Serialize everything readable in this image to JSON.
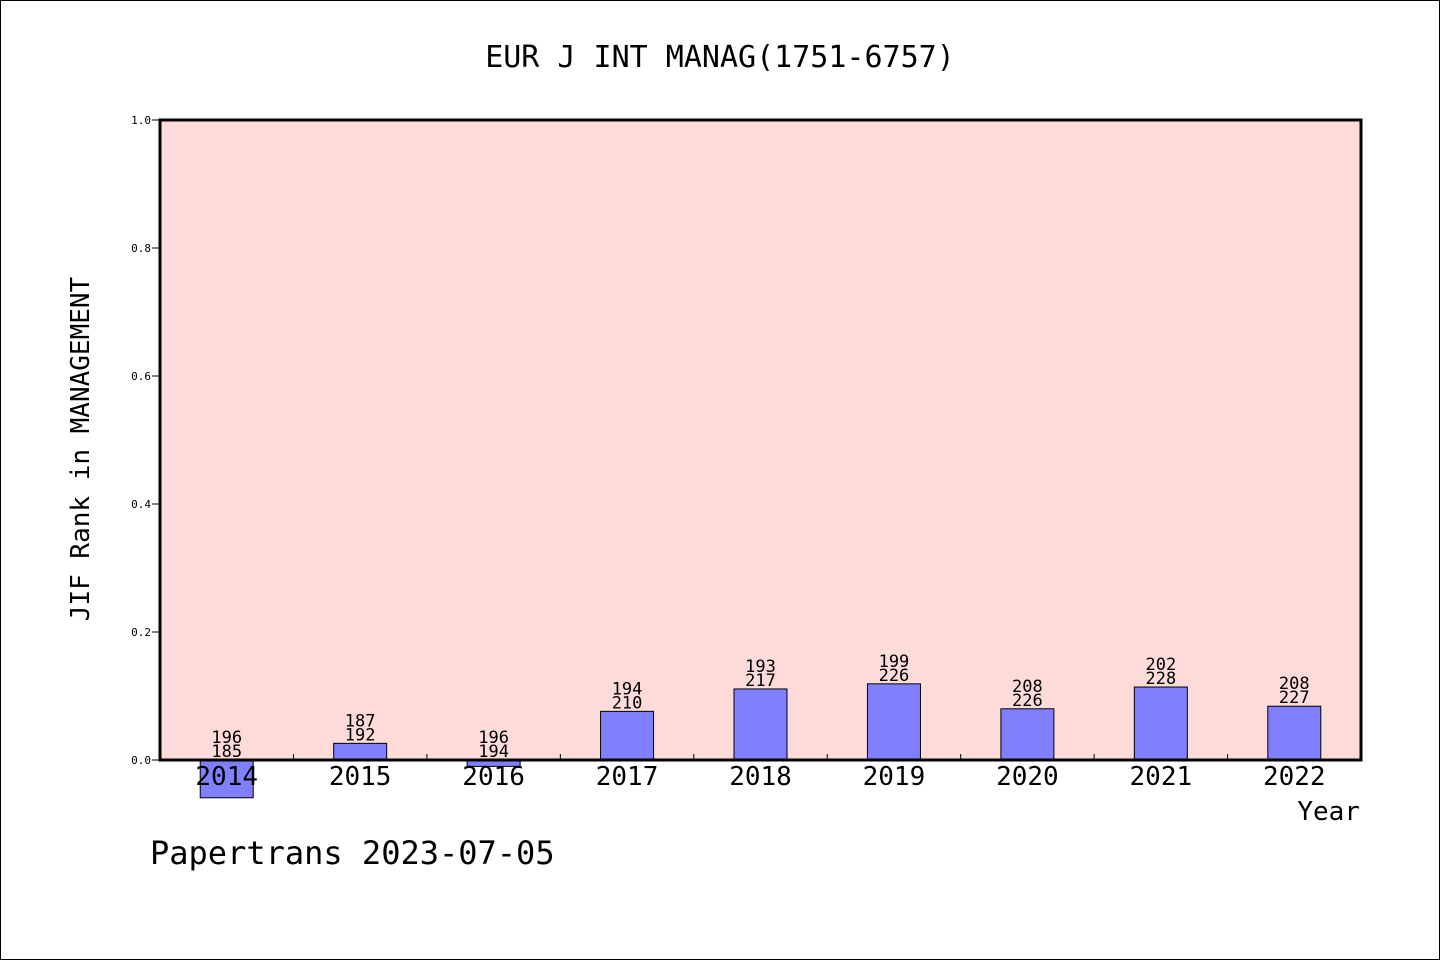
{
  "chart_data": {
    "type": "bar",
    "title": "EUR J INT MANAG(1751-6757)",
    "xlabel": "Year",
    "ylabel": "JIF Rank in MANAGEMENT",
    "ylim": [
      0,
      1.0
    ],
    "yticks": [
      "0.0",
      "0.2",
      "0.4",
      "0.6",
      "0.8",
      "1.0"
    ],
    "grid": false,
    "categories": [
      "2014",
      "2015",
      "2016",
      "2017",
      "2018",
      "2019",
      "2020",
      "2021",
      "2022"
    ],
    "values": [
      -0.059,
      0.026,
      -0.01,
      0.076,
      0.111,
      0.119,
      0.08,
      0.114,
      0.084
    ],
    "rank_labels": [
      {
        "top": "196",
        "bottom": "185"
      },
      {
        "top": "187",
        "bottom": "192"
      },
      {
        "top": "196",
        "bottom": "194"
      },
      {
        "top": "194",
        "bottom": "210"
      },
      {
        "top": "193",
        "bottom": "217"
      },
      {
        "top": "199",
        "bottom": "226"
      },
      {
        "top": "208",
        "bottom": "226"
      },
      {
        "top": "202",
        "bottom": "228"
      },
      {
        "top": "208",
        "bottom": "227"
      }
    ],
    "colors": {
      "plot_background": "#fddbd8",
      "bar_fill": "#8080ff",
      "bar_stroke": "#000000"
    }
  },
  "footer": {
    "credit": "Papertrans 2023-07-05"
  }
}
